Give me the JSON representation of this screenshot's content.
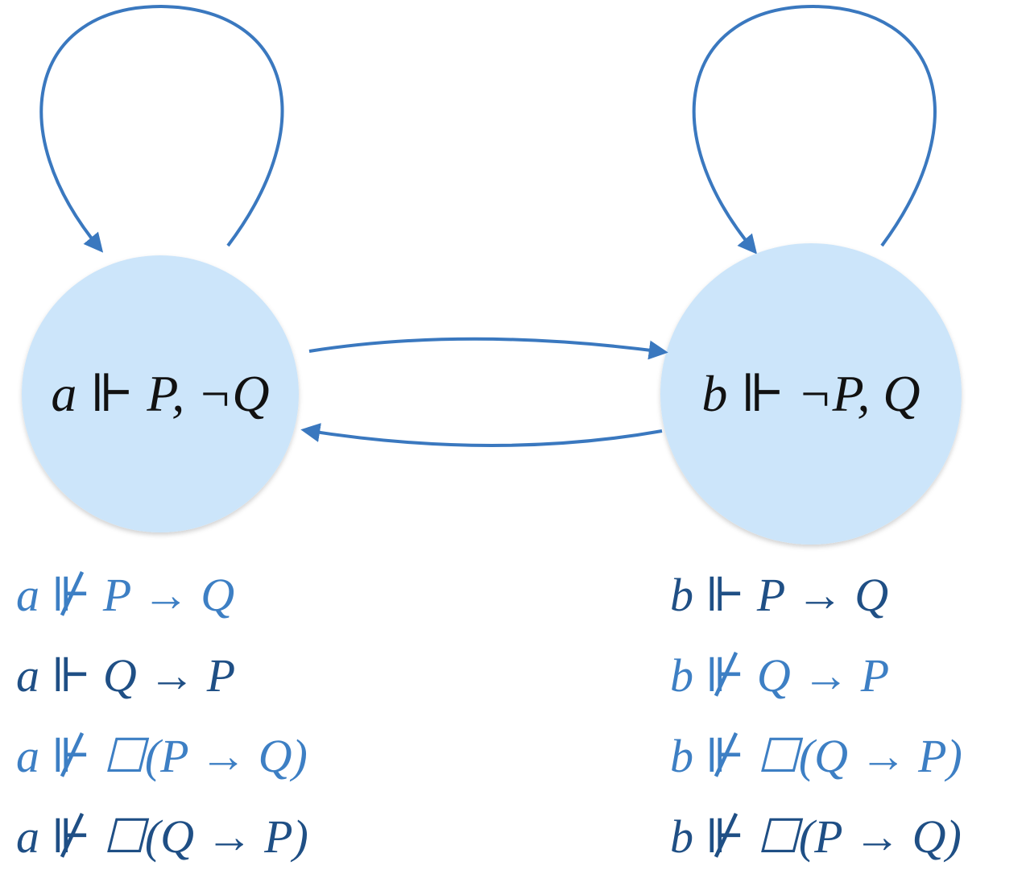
{
  "colors": {
    "node_fill": "#cce5fa",
    "edge": "#3a78bf",
    "label": "#111111",
    "fact_light": "#3d7fc4",
    "fact_dark": "#1f4f85"
  },
  "nodes": {
    "a": {
      "label": "a ⊩ P, ¬Q"
    },
    "b": {
      "label": "b ⊩ ¬P, Q"
    }
  },
  "facts": {
    "a": [
      {
        "text": "a ⊮ P → Q",
        "tone": "light"
      },
      {
        "text": "a ⊩ Q → P",
        "tone": "dark"
      },
      {
        "text": "a ⊮ ☐(P → Q)",
        "tone": "light"
      },
      {
        "text": "a ⊮ ☐(Q → P)",
        "tone": "dark"
      }
    ],
    "b": [
      {
        "text": "b ⊩ P → Q",
        "tone": "dark"
      },
      {
        "text": "b ⊮ Q → P",
        "tone": "light"
      },
      {
        "text": "b ⊮ ☐(Q → P)",
        "tone": "light"
      },
      {
        "text": "b ⊮ ☐(P → Q)",
        "tone": "dark"
      }
    ]
  }
}
